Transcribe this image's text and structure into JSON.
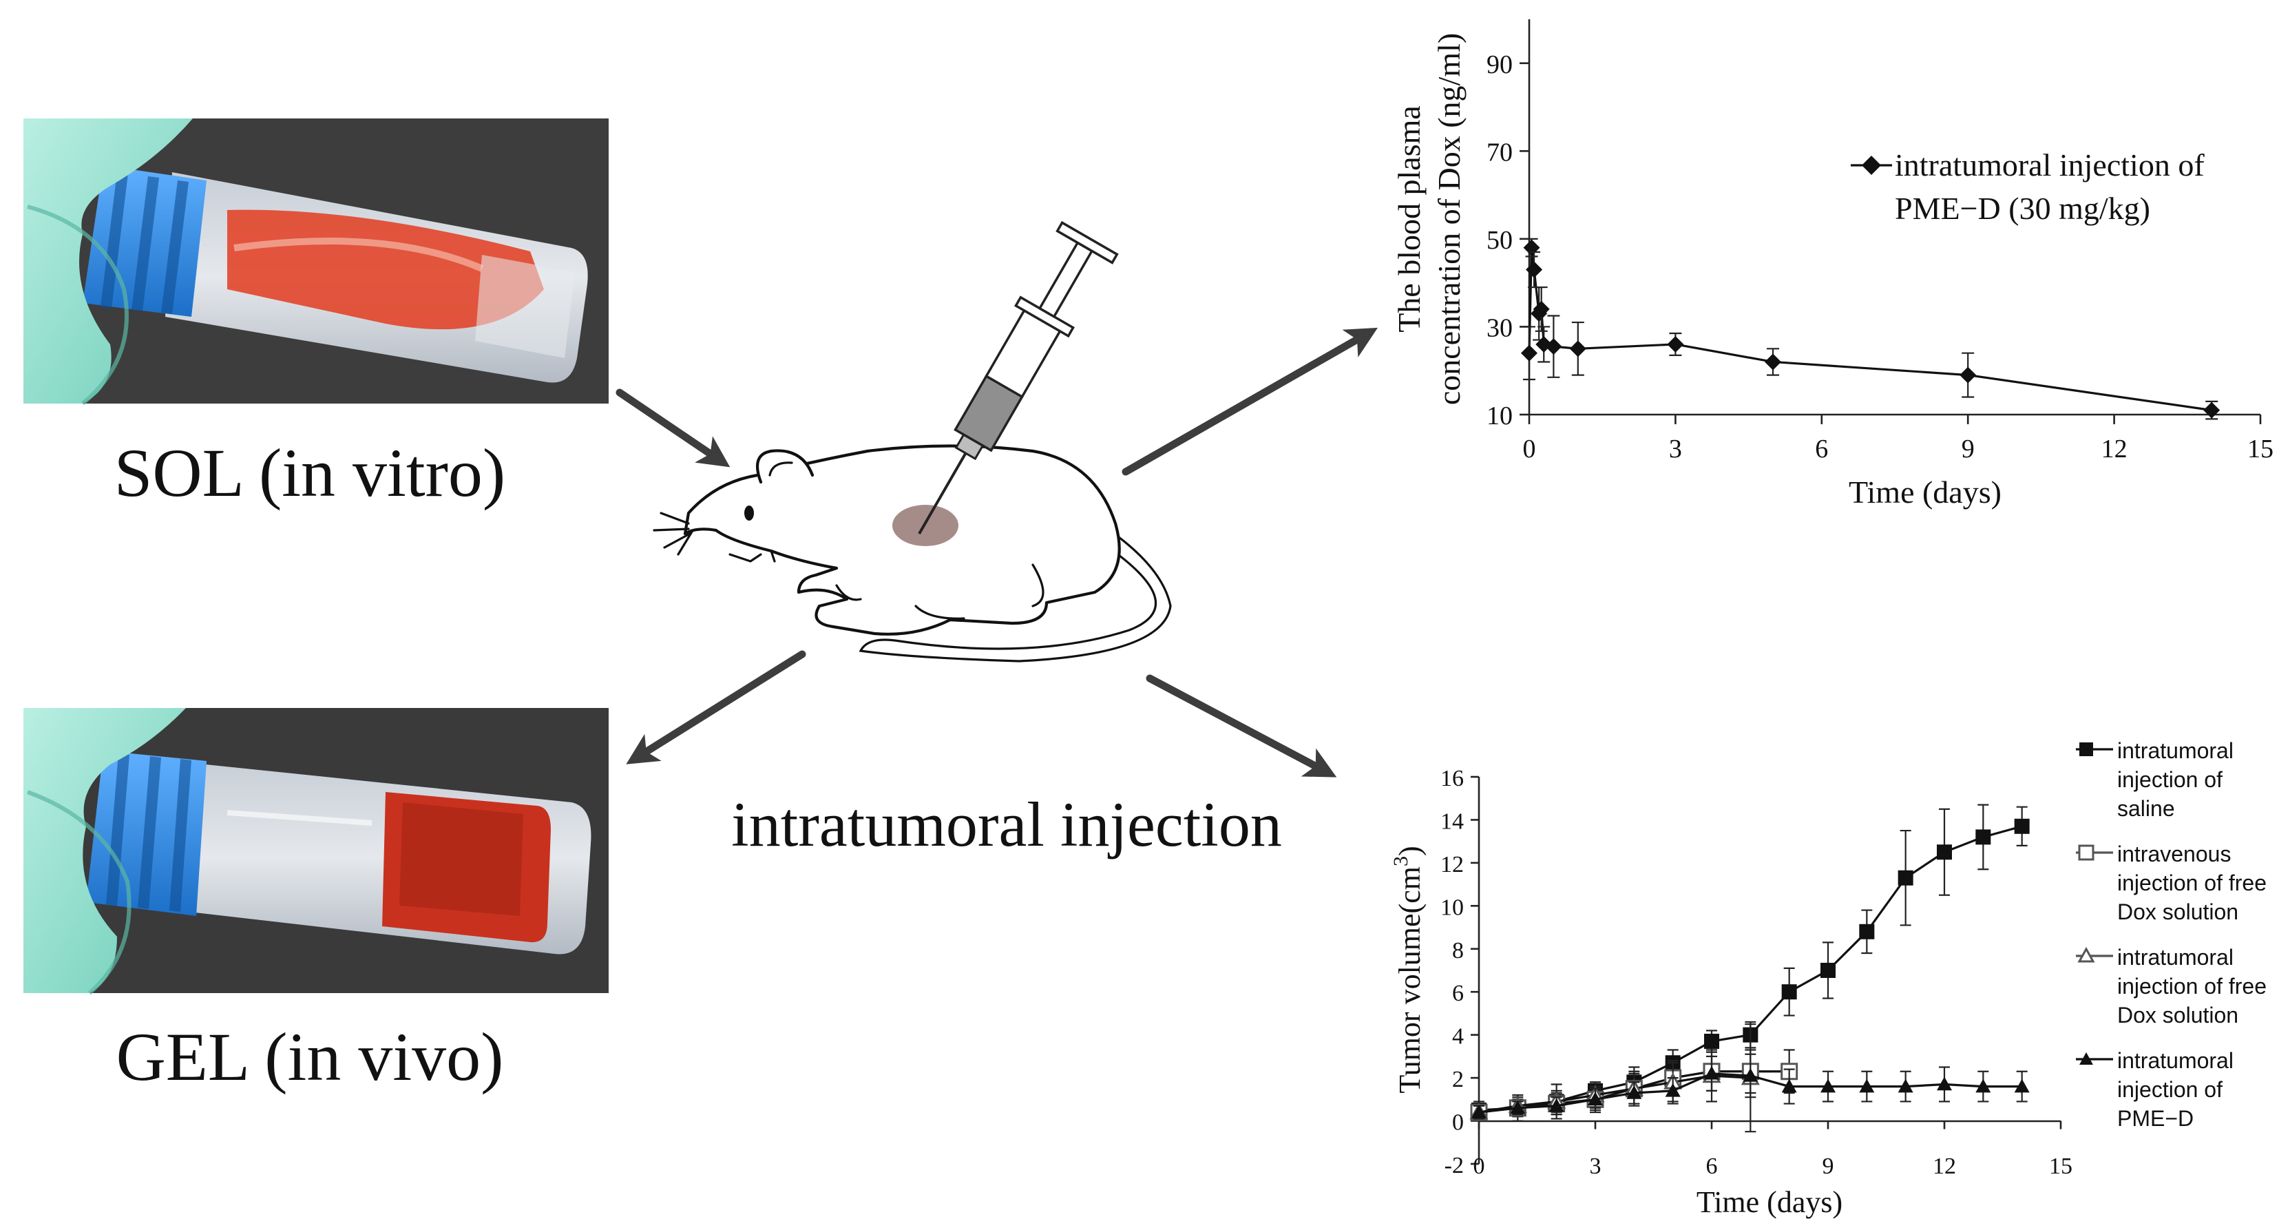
{
  "photos": {
    "sol_label": "SOL (in vitro)",
    "gel_label": "GEL (in vivo)"
  },
  "center": {
    "label": "intratumoral injection"
  },
  "colors": {
    "glove": "#9fe3d4",
    "cap": "#2b8be8",
    "dox_red": "#e2452a",
    "tumor": "#9c7f7c",
    "arrow": "#3d3d3d",
    "photo_bg": "#3a3a3a"
  },
  "chart_data": [
    {
      "type": "line",
      "ylabel_line1": "The blood plasma",
      "ylabel_line2": "concentration of Dox (ng/ml)",
      "xlabel": "Time (days)",
      "xlim": [
        0,
        15
      ],
      "ylim": [
        10,
        100
      ],
      "xticks": [
        0,
        3,
        6,
        9,
        12,
        15
      ],
      "yticks": [
        10,
        30,
        50,
        70,
        90
      ],
      "legend_position": "top-right",
      "legend_line1": "intratumoral injection of",
      "legend_line2": "PME−D (30 mg/kg)",
      "series": [
        {
          "name": "intratumoral injection of PME−D (30 mg/kg)",
          "marker": "diamond",
          "x": [
            0,
            0.05,
            0.1,
            0.2,
            0.25,
            0.3,
            0.5,
            1,
            3,
            5,
            9,
            14
          ],
          "y": [
            24,
            48,
            43,
            33,
            34,
            26,
            25.5,
            25,
            26,
            22,
            19,
            11
          ],
          "err": [
            6,
            2,
            4,
            6,
            5,
            4,
            7,
            6,
            2.5,
            3,
            5,
            2
          ]
        }
      ]
    },
    {
      "type": "line",
      "ylabel": "Tumor volume(cm³)",
      "ylabel_base": "Tumor volume(cm",
      "ylabel_sup": "3",
      "ylabel_close": ")",
      "xlabel": "Time (days)",
      "xlim": [
        0,
        15
      ],
      "ylim": [
        -2,
        16
      ],
      "xticks": [
        0,
        3,
        6,
        9,
        12,
        15
      ],
      "yticks": [
        -2,
        0,
        2,
        4,
        6,
        8,
        10,
        12,
        14,
        16
      ],
      "legend_position": "right",
      "series": [
        {
          "name": "intratumoral injection of saline",
          "legend_lines": [
            "intratumoral",
            "injection of",
            "saline"
          ],
          "marker": "filled-square",
          "x": [
            0,
            1,
            2,
            3,
            4,
            5,
            6,
            7,
            8,
            9,
            10,
            11,
            12,
            13,
            14
          ],
          "y": [
            0.5,
            0.6,
            0.9,
            1.4,
            1.8,
            2.7,
            3.7,
            4.0,
            6.0,
            7.0,
            8.8,
            11.3,
            12.5,
            13.2,
            13.7
          ],
          "err": [
            0.4,
            0.6,
            0.8,
            0.4,
            0.7,
            0.6,
            0.5,
            0.6,
            1.1,
            1.3,
            1.0,
            2.2,
            2.0,
            1.5,
            0.9
          ]
        },
        {
          "name": "intravenous injection of free Dox solution",
          "legend_lines": [
            "intravenous",
            "injection of free",
            "Dox solution"
          ],
          "marker": "open-square",
          "x": [
            0,
            1,
            2,
            3,
            4,
            5,
            6,
            7,
            8
          ],
          "y": [
            0.4,
            0.6,
            0.8,
            1.0,
            1.5,
            2.0,
            2.3,
            2.3,
            2.3
          ],
          "err": [
            0.3,
            0.4,
            0.5,
            0.6,
            0.7,
            0.8,
            0.9,
            1.0,
            1.0
          ]
        },
        {
          "name": "intratumoral injection of free Dox solution",
          "legend_lines": [
            "intratumoral",
            "injection of free",
            "Dox solution"
          ],
          "marker": "open-triangle",
          "x": [
            0,
            1,
            2,
            3,
            4,
            5,
            6,
            7
          ],
          "y": [
            0.4,
            0.7,
            0.9,
            1.2,
            1.5,
            1.8,
            2.1,
            2.0
          ],
          "err": [
            0.3,
            0.4,
            0.5,
            0.6,
            0.8,
            0.9,
            1.2,
            2.5
          ]
        },
        {
          "name": "intratumoral injection of PME−D",
          "legend_lines": [
            "intratumoral",
            "injection of",
            "PME−D"
          ],
          "marker": "filled-triangle",
          "x": [
            0,
            1,
            2,
            3,
            4,
            5,
            6,
            7,
            8,
            9,
            10,
            11,
            12,
            13,
            14
          ],
          "y": [
            0.4,
            0.6,
            0.7,
            1.0,
            1.3,
            1.4,
            2.2,
            2.1,
            1.6,
            1.6,
            1.6,
            1.6,
            1.7,
            1.6,
            1.6
          ],
          "err": [
            0.3,
            0.3,
            0.4,
            0.5,
            0.5,
            0.6,
            0.8,
            1.0,
            0.8,
            0.7,
            0.7,
            0.7,
            0.8,
            0.7,
            0.7
          ]
        }
      ]
    }
  ]
}
